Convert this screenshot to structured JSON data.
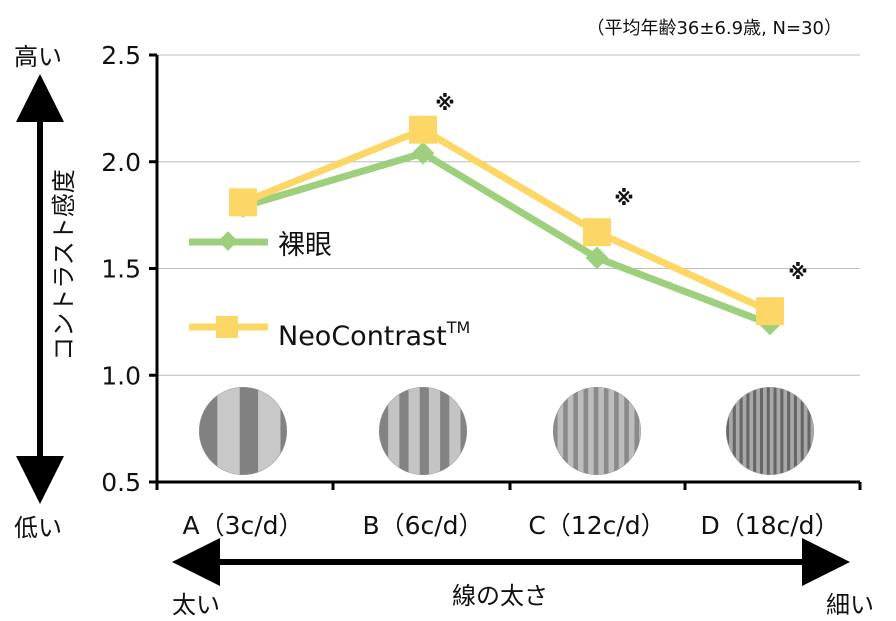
{
  "chart_data": {
    "type": "line",
    "note": "（平均年齢36±6.9歳, N=30）",
    "ylabel": "コントラスト感度",
    "xlabel": "線の太さ",
    "y_high_label": "高い",
    "y_low_label": "低い",
    "x_left_label": "太い",
    "x_right_label": "細い",
    "ylim": [
      0.5,
      2.5
    ],
    "yticks": [
      "0.5",
      "1.0",
      "1.5",
      "2.0",
      "2.5"
    ],
    "categories": [
      "A（3c/d）",
      "B（6c/d）",
      "C（12c/d）",
      "D（18c/d）"
    ],
    "grating_frequencies": [
      3,
      6,
      12,
      18
    ],
    "series": [
      {
        "name": "裸眼",
        "values": [
          1.79,
          2.04,
          1.55,
          1.24
        ],
        "color": "#9dcf7d",
        "marker": "diamond"
      },
      {
        "name": "NeoContrast",
        "name_suffix": "TM",
        "values": [
          1.81,
          2.15,
          1.67,
          1.3
        ],
        "color": "#fdd766",
        "marker": "square"
      }
    ],
    "significance_marks": [
      "",
      "※",
      "※",
      "※"
    ],
    "grid": true,
    "legend": "inside-left"
  }
}
